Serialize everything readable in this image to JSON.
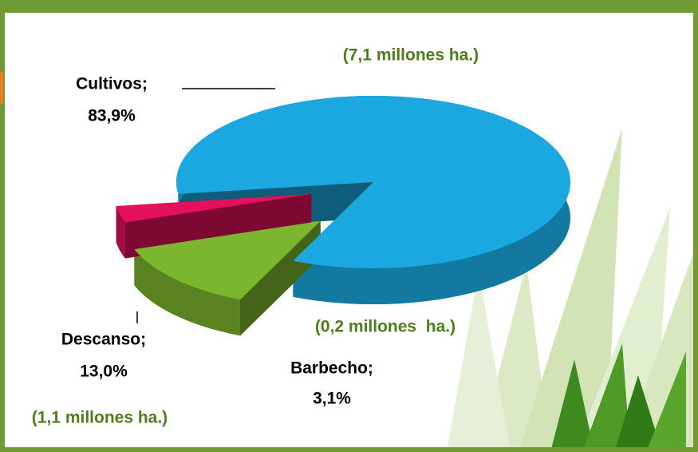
{
  "chart_data": {
    "type": "pie",
    "categories": [
      "Cultivos;",
      "Descanso;",
      "Barbecho;"
    ],
    "values": [
      83.9,
      13.0,
      3.1
    ],
    "value_labels": [
      "83,9%",
      "13,0%",
      "3,1%"
    ],
    "colors": [
      "#1ba8e0",
      "#7cb52e",
      "#e3105c"
    ],
    "annotations": [
      "(7,1 millones ha.)",
      "(1,1 millones ha.)",
      "(0,2 millones  ha.)"
    ]
  }
}
